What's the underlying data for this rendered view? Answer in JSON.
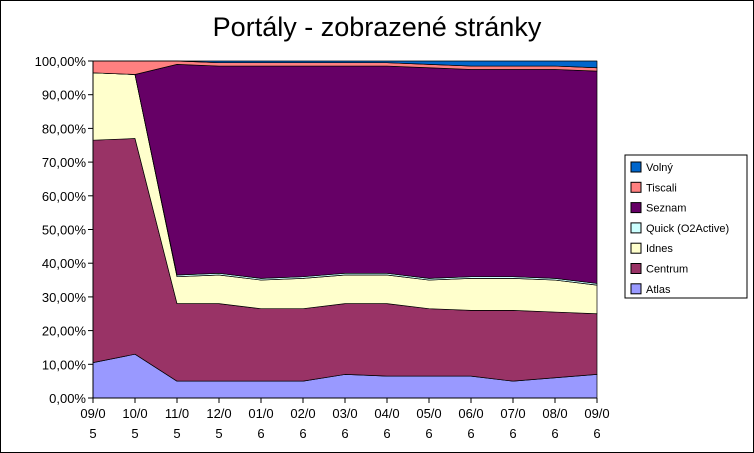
{
  "chart_data": {
    "type": "area",
    "stacked": true,
    "percent": true,
    "title": "Portály - zobrazené stránky",
    "xlabel": "",
    "ylabel": "",
    "ylim": [
      0,
      100
    ],
    "y_ticks": [
      "0,00%",
      "10,00%",
      "20,00%",
      "30,00%",
      "40,00%",
      "50,00%",
      "60,00%",
      "70,00%",
      "80,00%",
      "90,00%",
      "100,00%"
    ],
    "categories": [
      [
        "09/0",
        "5"
      ],
      [
        "10/0",
        "5"
      ],
      [
        "11/0",
        "5"
      ],
      [
        "12/0",
        "5"
      ],
      [
        "01/0",
        "6"
      ],
      [
        "02/0",
        "6"
      ],
      [
        "03/0",
        "6"
      ],
      [
        "04/0",
        "6"
      ],
      [
        "05/0",
        "6"
      ],
      [
        "06/0",
        "6"
      ],
      [
        "07/0",
        "6"
      ],
      [
        "08/0",
        "6"
      ],
      [
        "09/0",
        "6"
      ]
    ],
    "legend_position": "right",
    "series": [
      {
        "name": "Atlas",
        "color": "#9999ff",
        "values": [
          10.5,
          13.0,
          5.0,
          5.0,
          5.0,
          5.0,
          7.0,
          6.5,
          6.5,
          6.5,
          5.0,
          6.0,
          7.0
        ]
      },
      {
        "name": "Centrum",
        "color": "#993366",
        "values": [
          66.0,
          64.0,
          23.0,
          23.0,
          21.5,
          21.5,
          21.0,
          21.5,
          20.0,
          19.5,
          21.0,
          19.5,
          18.0
        ]
      },
      {
        "name": "Idnes",
        "color": "#ffffcc",
        "values": [
          20.0,
          19.0,
          8.0,
          8.5,
          8.5,
          9.0,
          8.5,
          8.5,
          8.5,
          9.5,
          9.5,
          9.5,
          8.5
        ]
      },
      {
        "name": "Quick (O2Active)",
        "color": "#ccffff",
        "values": [
          0,
          0,
          0.5,
          0.5,
          0.5,
          0.5,
          0.5,
          0.5,
          0.5,
          0.5,
          0.5,
          0.5,
          0.5
        ]
      },
      {
        "name": "Seznam",
        "color": "#660066",
        "values": [
          0,
          0,
          62.5,
          61.5,
          63.0,
          62.5,
          61.5,
          61.5,
          62.5,
          61.5,
          61.5,
          62.0,
          63.0
        ]
      },
      {
        "name": "Tiscali",
        "color": "#ff8080",
        "values": [
          3.5,
          4.0,
          1.0,
          1.0,
          1.0,
          1.0,
          1.0,
          1.0,
          1.0,
          1.0,
          1.0,
          1.0,
          1.0
        ]
      },
      {
        "name": "Volný",
        "color": "#0066cc",
        "values": [
          0,
          0,
          0,
          0.5,
          0.5,
          0.5,
          0.5,
          0.5,
          1.0,
          1.5,
          1.5,
          1.5,
          2.0
        ]
      }
    ]
  }
}
